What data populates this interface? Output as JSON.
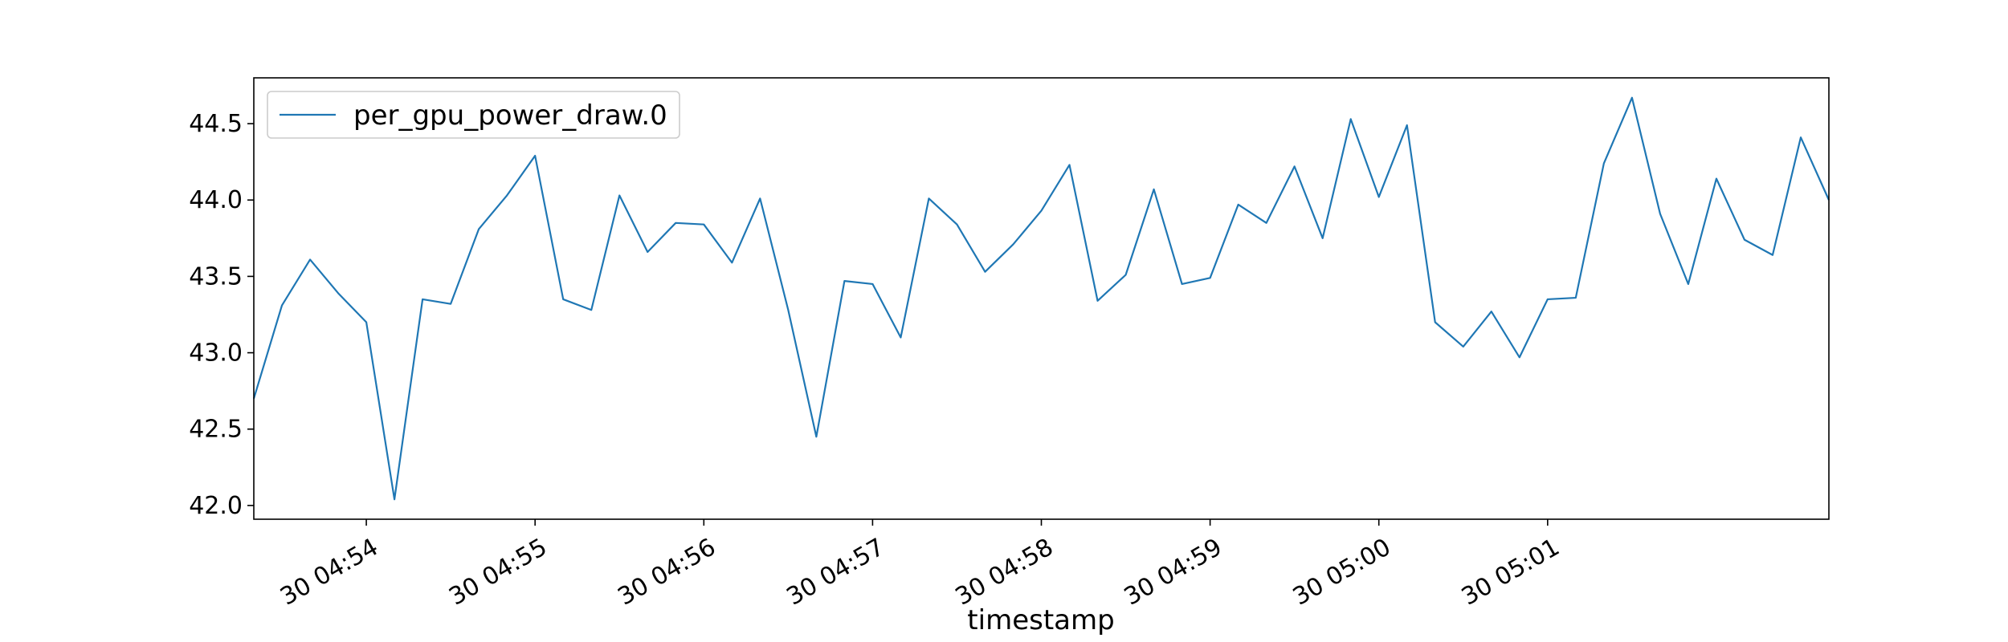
{
  "chart_data": {
    "type": "line",
    "xlabel": "timestamp",
    "ylabel": "",
    "title": "",
    "x": [
      "04:53:20",
      "04:53:30",
      "04:53:40",
      "04:53:50",
      "04:54:00",
      "04:54:10",
      "04:54:20",
      "04:54:30",
      "04:54:40",
      "04:54:50",
      "04:55:00",
      "04:55:10",
      "04:55:20",
      "04:55:30",
      "04:55:40",
      "04:55:50",
      "04:56:00",
      "04:56:10",
      "04:56:20",
      "04:56:30",
      "04:56:40",
      "04:56:50",
      "04:57:00",
      "04:57:10",
      "04:57:20",
      "04:57:30",
      "04:57:40",
      "04:57:50",
      "04:58:00",
      "04:58:10",
      "04:58:20",
      "04:58:30",
      "04:58:40",
      "04:58:50",
      "04:59:00",
      "04:59:10",
      "04:59:20",
      "04:59:30",
      "04:59:40",
      "04:59:50",
      "05:00:00",
      "05:00:10",
      "05:00:20",
      "05:00:30",
      "05:00:40",
      "05:00:50",
      "05:01:00",
      "05:01:10",
      "05:01:20",
      "05:01:30",
      "05:01:40",
      "05:01:50",
      "05:02:00",
      "05:02:10",
      "05:02:20",
      "05:02:30",
      "05:02:40"
    ],
    "series": [
      {
        "name": "per_gpu_power_draw.0",
        "color": "#1f77b4",
        "values": [
          42.7,
          43.31,
          43.61,
          43.39,
          43.2,
          42.04,
          43.35,
          43.32,
          43.81,
          44.03,
          44.29,
          43.35,
          43.28,
          44.03,
          43.66,
          43.85,
          43.84,
          43.59,
          44.01,
          43.28,
          42.45,
          43.47,
          43.45,
          43.1,
          44.01,
          43.84,
          43.53,
          43.71,
          43.93,
          44.23,
          43.34,
          43.51,
          44.07,
          43.45,
          43.49,
          43.97,
          43.85,
          44.22,
          43.75,
          44.53,
          44.02,
          44.49,
          43.2,
          43.04,
          43.27,
          42.97,
          43.35,
          43.36,
          44.24,
          44.67,
          43.91,
          43.45,
          44.14,
          43.74,
          43.64,
          44.41,
          44.0
        ]
      }
    ],
    "x_tick_labels": [
      "30 04:54",
      "30 04:55",
      "30 04:56",
      "30 04:57",
      "30 04:58",
      "30 04:59",
      "30 05:00",
      "30 05:01"
    ],
    "x_tick_times": [
      "04:54:00",
      "04:55:00",
      "04:56:00",
      "04:57:00",
      "04:58:00",
      "04:59:00",
      "05:00:00",
      "05:01:00"
    ],
    "xlim": [
      "04:53:20",
      "05:02:40"
    ],
    "y_ticks": [
      42.0,
      42.5,
      43.0,
      43.5,
      44.0,
      44.5
    ],
    "y_tick_labels": [
      "42.0",
      "42.5",
      "43.0",
      "43.5",
      "44.0",
      "44.5"
    ],
    "ylim": [
      41.91,
      44.8
    ],
    "grid": false,
    "legend": "top-left"
  }
}
